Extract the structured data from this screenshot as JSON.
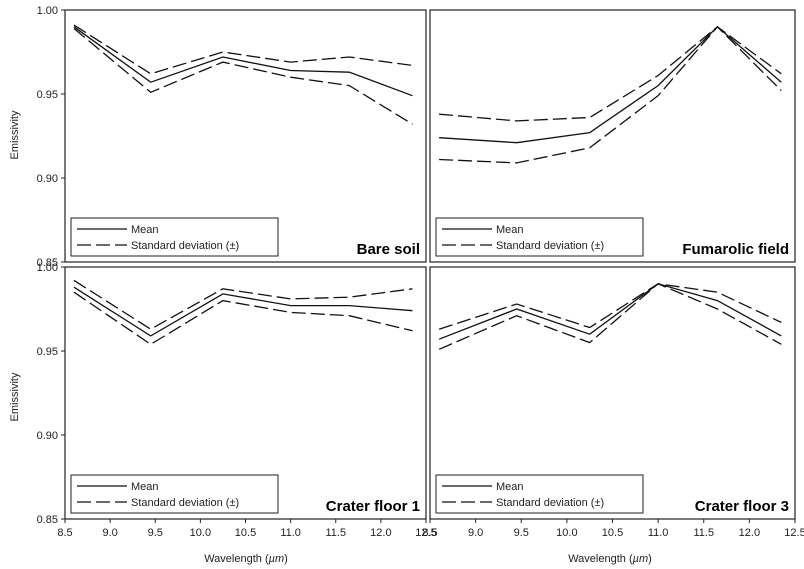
{
  "chart_data": [
    {
      "type": "line",
      "title": "Bare soil",
      "xlabel": "",
      "ylabel": "Emissivity",
      "xlim": [
        8.5,
        12.5
      ],
      "ylim": [
        0.85,
        1.0
      ],
      "x": [
        8.6,
        9.45,
        10.25,
        11.0,
        11.65,
        12.35
      ],
      "series": [
        {
          "name": "Mean",
          "style": "solid",
          "values": [
            0.99,
            0.957,
            0.972,
            0.964,
            0.963,
            0.949
          ]
        },
        {
          "name": "Standard deviation (±)",
          "style": "dashed",
          "values": [
            0.991,
            0.962,
            0.975,
            0.969,
            0.972,
            0.967
          ]
        },
        {
          "name": "",
          "style": "dashed",
          "values": [
            0.989,
            0.951,
            0.969,
            0.96,
            0.955,
            0.932
          ]
        }
      ]
    },
    {
      "type": "line",
      "title": "Fumarolic field",
      "xlabel": "",
      "ylabel": "",
      "xlim": [
        8.5,
        12.5
      ],
      "ylim": [
        0.85,
        1.0
      ],
      "x": [
        8.6,
        9.45,
        10.25,
        11.0,
        11.65,
        12.35
      ],
      "series": [
        {
          "name": "Mean",
          "style": "solid",
          "values": [
            0.924,
            0.921,
            0.927,
            0.955,
            0.99,
            0.957
          ]
        },
        {
          "name": "Standard deviation (±)",
          "style": "dashed",
          "values": [
            0.938,
            0.934,
            0.936,
            0.961,
            0.99,
            0.962
          ]
        },
        {
          "name": "",
          "style": "dashed",
          "values": [
            0.911,
            0.909,
            0.918,
            0.949,
            0.99,
            0.952
          ]
        }
      ]
    },
    {
      "type": "line",
      "title": "Crater floor 1",
      "xlabel": "Wavelength (µm)",
      "ylabel": "Emissivity",
      "xlim": [
        8.5,
        12.5
      ],
      "ylim": [
        0.85,
        1.0
      ],
      "x": [
        8.6,
        9.45,
        10.25,
        11.0,
        11.65,
        12.35
      ],
      "series": [
        {
          "name": "Mean",
          "style": "solid",
          "values": [
            0.988,
            0.959,
            0.984,
            0.977,
            0.977,
            0.974
          ]
        },
        {
          "name": "Standard deviation (±)",
          "style": "dashed",
          "values": [
            0.992,
            0.963,
            0.987,
            0.981,
            0.982,
            0.987
          ]
        },
        {
          "name": "",
          "style": "dashed",
          "values": [
            0.985,
            0.954,
            0.98,
            0.973,
            0.971,
            0.962
          ]
        }
      ]
    },
    {
      "type": "line",
      "title": "Crater floor 3",
      "xlabel": "Wavelength (µm)",
      "ylabel": "",
      "xlim": [
        8.5,
        12.5
      ],
      "ylim": [
        0.85,
        1.0
      ],
      "x": [
        8.6,
        9.45,
        10.25,
        11.0,
        11.65,
        12.35
      ],
      "series": [
        {
          "name": "Mean",
          "style": "solid",
          "values": [
            0.957,
            0.975,
            0.96,
            0.99,
            0.98,
            0.959
          ]
        },
        {
          "name": "Standard deviation (±)",
          "style": "dashed",
          "values": [
            0.963,
            0.978,
            0.964,
            0.99,
            0.985,
            0.967
          ]
        },
        {
          "name": "",
          "style": "dashed",
          "values": [
            0.951,
            0.971,
            0.955,
            0.99,
            0.975,
            0.954
          ]
        }
      ]
    }
  ],
  "legend": {
    "mean_label": "Mean",
    "sd_label": "Standard deviation (±)"
  },
  "xticks": [
    "8.5",
    "9.0",
    "9.5",
    "10.0",
    "10.5",
    "11.0",
    "11.5",
    "12.0",
    "12.5"
  ],
  "yticks": [
    "0.85",
    "0.90",
    "0.95",
    "1.00"
  ],
  "ylabel": "Emissivity",
  "xlabel_prefix": "Wavelength (",
  "xlabel_unit": "µm",
  "xlabel_suffix": ")"
}
